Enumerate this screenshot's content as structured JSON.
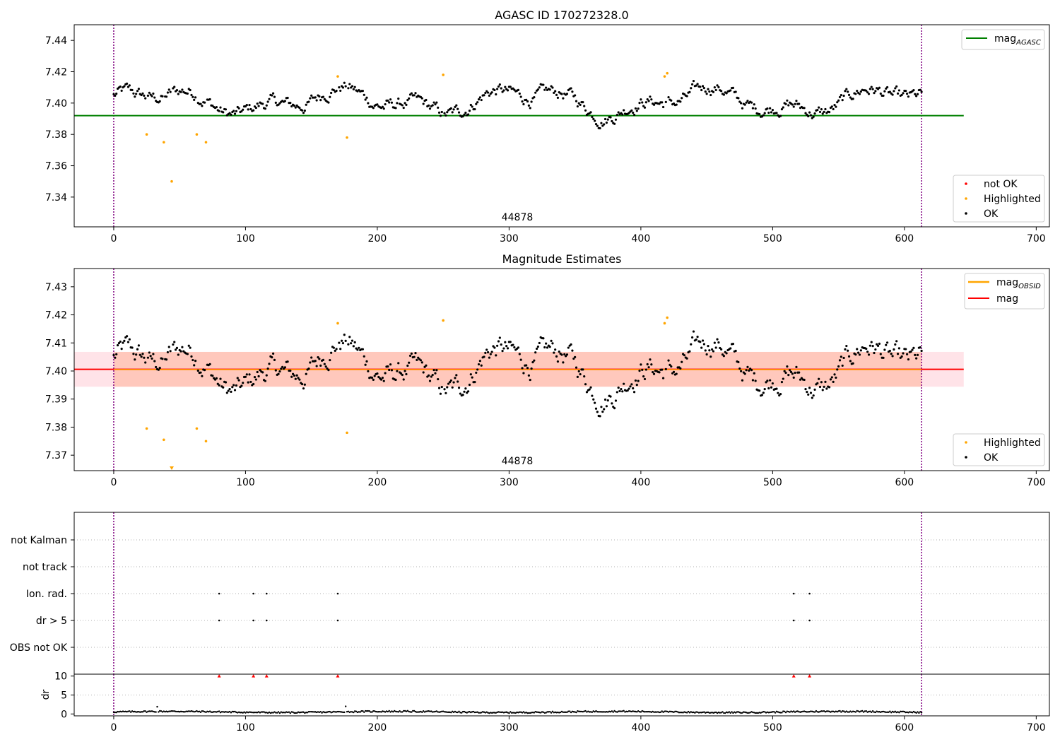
{
  "figure": {
    "colors": {
      "ok": "#000000",
      "highlighted": "#ffa500",
      "not_ok": "#ff0000",
      "agasc_line": "#008000",
      "mag_line": "#ff0000",
      "obsid_line": "#ffa500",
      "band_mag": "#ffc0cb",
      "band_obsid": "#ffa07a",
      "obs_boundary": "#800080"
    }
  },
  "chart_data": [
    {
      "type": "scatter",
      "title": "AGASC ID 170272328.0",
      "annotation": "44878",
      "xlim": [
        -30,
        710
      ],
      "ylim": [
        7.321,
        7.45
      ],
      "xticks": [
        0,
        100,
        200,
        300,
        400,
        500,
        600,
        700
      ],
      "yticks": [
        7.34,
        7.36,
        7.38,
        7.4,
        7.42,
        7.44
      ],
      "grid": false,
      "obs_boundaries": [
        0,
        613
      ],
      "series": [
        {
          "name": "OK",
          "description": "samples, mean ~7.400 with +/-0.01 scatter, 613 samples (fluctuating)"
        },
        {
          "name": "Highlighted",
          "points": [
            [
              25,
              7.38
            ],
            [
              38,
              7.375
            ],
            [
              44,
              7.35
            ],
            [
              63,
              7.38
            ],
            [
              70,
              7.375
            ],
            [
              170,
              7.417
            ],
            [
              177,
              7.378
            ],
            [
              250,
              7.418
            ],
            [
              418,
              7.417
            ],
            [
              420,
              7.419
            ]
          ]
        },
        {
          "name": "not OK",
          "points": []
        }
      ],
      "hlines": [
        {
          "name": "mag_AGASC",
          "y": 7.392,
          "x": [
            -30,
            645
          ]
        }
      ],
      "legend": {
        "upper": [
          "mag_AGASC"
        ],
        "lower": [
          "not OK",
          "Highlighted",
          "OK"
        ],
        "upper_position": "upper-right",
        "lower_position": "lower-right"
      }
    },
    {
      "type": "scatter",
      "title": "Magnitude Estimates",
      "annotation": "44878",
      "xlim": [
        -30,
        710
      ],
      "ylim": [
        7.3645,
        7.4365
      ],
      "xticks": [
        0,
        100,
        200,
        300,
        400,
        500,
        600,
        700
      ],
      "yticks": [
        7.37,
        7.38,
        7.39,
        7.4,
        7.41,
        7.42,
        7.43
      ],
      "grid": false,
      "obs_boundaries": [
        0,
        613
      ],
      "series": [
        {
          "name": "OK",
          "description": "same samples as top panel"
        },
        {
          "name": "Highlighted",
          "points": [
            [
              25,
              7.3795
            ],
            [
              38,
              7.3755
            ],
            [
              44,
              7.365
            ],
            [
              63,
              7.3795
            ],
            [
              70,
              7.375
            ],
            [
              170,
              7.417
            ],
            [
              177,
              7.378
            ],
            [
              250,
              7.418
            ],
            [
              418,
              7.417
            ],
            [
              420,
              7.419
            ]
          ]
        }
      ],
      "hlines": [
        {
          "name": "mag_OBSID",
          "y": 7.4005,
          "x": [
            0,
            613
          ]
        },
        {
          "name": "mag",
          "y": 7.4006,
          "x": [
            -30,
            645
          ]
        }
      ],
      "bands": [
        {
          "name": "mag band",
          "y": [
            7.3944,
            7.4068
          ],
          "x": [
            -30,
            645
          ]
        },
        {
          "name": "obsid band",
          "y": [
            7.3944,
            7.4068
          ],
          "x": [
            0,
            613
          ]
        }
      ],
      "legend": {
        "upper": [
          "mag_OBSID",
          "mag"
        ],
        "lower": [
          "Highlighted",
          "OK"
        ],
        "upper_position": "upper-right",
        "lower_position": "lower-right"
      }
    },
    {
      "type": "scatter",
      "title": "",
      "xlim": [
        -30,
        710
      ],
      "categories": [
        "OBS not OK",
        "dr > 5",
        "Ion. rad.",
        "not track",
        "not Kalman"
      ],
      "grid": true,
      "obs_boundaries": [
        0,
        613
      ],
      "flags": {
        "Ion. rad.": [
          80,
          106,
          116,
          170,
          516,
          528
        ],
        "dr > 5": [
          80,
          106,
          116,
          170,
          516,
          528
        ]
      }
    },
    {
      "type": "scatter",
      "title": "",
      "xlim": [
        -30,
        710
      ],
      "ylim": [
        -0.5,
        10.5
      ],
      "yticks": [
        0,
        5,
        10
      ],
      "ylabel": "dr",
      "xticks": [
        0,
        100,
        200,
        300,
        400,
        500,
        600,
        700
      ],
      "obs_boundaries": [
        0,
        613
      ],
      "series": [
        {
          "name": "dr",
          "description": "~0.5 baseline, one sample at x=33 -> 1.9, x=176 -> 2.0"
        },
        {
          "name": "dr clipped",
          "points": [
            [
              80,
              10
            ],
            [
              106,
              10
            ],
            [
              116,
              10
            ],
            [
              170,
              10
            ],
            [
              516,
              10
            ],
            [
              528,
              10
            ]
          ]
        }
      ]
    }
  ],
  "legend_labels": {
    "mag_agasc_main": "mag",
    "mag_agasc_sub": "AGASC",
    "mag_obsid_main": "mag",
    "mag_obsid_sub": "OBSID",
    "mag": "mag",
    "not_ok": "not OK",
    "highlighted": "Highlighted",
    "ok": "OK"
  }
}
